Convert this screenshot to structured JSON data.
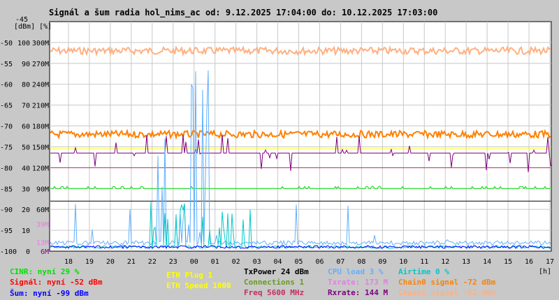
{
  "title": "Signál a šum radia hol_nims_ac od: 9.12.2025 17:04:00 do: 10.12.2025 17:03:00",
  "chart_data": {
    "type": "line",
    "title": "Signál a šum radia hol_nims_ac od: 9.12.2025 17:04:00 do: 10.12.2025 17:03:00",
    "ylabel": "[dBm] [%]",
    "xlabel": "[h]",
    "ylim": [
      -100,
      -45
    ],
    "y_ticks_dbm": [
      "-45",
      "-50",
      "-55",
      "-60",
      "-65",
      "-70",
      "-75",
      "-80",
      "-85",
      "-90",
      "-95",
      "-100"
    ],
    "y_ticks_pct": [
      "100",
      "90",
      "80",
      "70",
      "60",
      "50",
      "40",
      "30",
      "20",
      "10",
      "0"
    ],
    "y_ticks_rate": [
      "300M",
      "270M",
      "240M",
      "210M",
      "180M",
      "150M",
      "120M",
      "90M",
      "60M"
    ],
    "extra_labels": [
      {
        "text": "39M",
        "color": "#e080e0"
      },
      {
        "text": "13M",
        "color": "#e080e0"
      },
      {
        "text": "6M",
        "color": "#800080"
      }
    ],
    "x_ticks": [
      "18",
      "19",
      "20",
      "21",
      "22",
      "23",
      "00",
      "01",
      "02",
      "03",
      "04",
      "05",
      "06",
      "07",
      "08",
      "09",
      "10",
      "11",
      "12",
      "13",
      "14",
      "15",
      "16",
      "17"
    ],
    "series": [
      {
        "name": "Chain1 signal",
        "color": "#ffb080",
        "level": -52
      },
      {
        "name": "Chain0 signal",
        "color": "#ff8000",
        "level": -72
      },
      {
        "name": "Txrate",
        "color": "#ffff00",
        "level": -75.5
      },
      {
        "name": "Rxrate",
        "color": "#800080",
        "level": -76.5
      },
      {
        "name": "Freq",
        "color": "#c03060",
        "level": -80
      },
      {
        "name": "CINR",
        "color": "#00e000",
        "level": -85
      },
      {
        "name": "TxPower",
        "color": "#000000",
        "level": -88
      },
      {
        "name": "CPU load",
        "color": "#60b0ff",
        "level": -98
      },
      {
        "name": "Airtime",
        "color": "#00c8c8",
        "level": -99
      },
      {
        "name": "Šum",
        "color": "#0000ff",
        "level": -99
      }
    ]
  },
  "legend": {
    "cinr": "CINR: nyní 29 %",
    "signal": "Signál: nyní -52 dBm",
    "noise": "Šum: nyní -99 dBm",
    "eth_plug": "ETH Plug 1",
    "eth_speed": "ETH Speed 1000",
    "txpower": "TxPower 24 dBm",
    "connections": "Connections 1",
    "freq": "Freq 5600 MHz",
    "cpu": "CPU load 3 %",
    "txrate": "Txrate: 173 M",
    "rxrate": "Rxrate: 144 M",
    "airtime": "Airtime 0 %",
    "chain0": "Chain0 signal -72 dBm",
    "chain1": "Chain1 signal -52 dBm"
  }
}
